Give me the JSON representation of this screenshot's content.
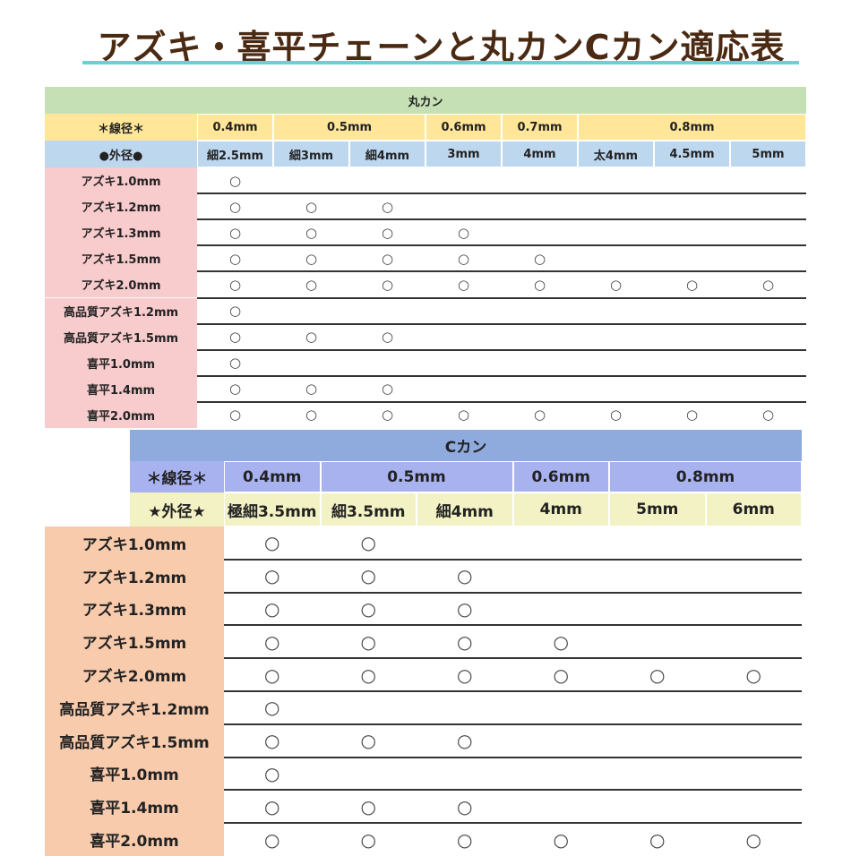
{
  "title": "アズキ・喜平チェーンと丸カンCカン適応表",
  "colors": {
    "title": "#4a2a12",
    "underline": "#63d4d6"
  },
  "marukan": {
    "title": "丸カン",
    "wire_label": "＊線径＊",
    "wire": [
      {
        "label": "0.4mm",
        "span": 1
      },
      {
        "label": "0.5mm",
        "span": 2
      },
      {
        "label": "0.6mm",
        "span": 1
      },
      {
        "label": "0.7mm",
        "span": 1
      },
      {
        "label": "0.8mm",
        "span": 3
      }
    ],
    "outer_label": "●外径●",
    "outer": [
      "細2.5mm",
      "細3mm",
      "細4mm",
      "3mm",
      "4mm",
      "太4mm",
      "4.5mm",
      "5mm"
    ],
    "rows": [
      {
        "chain": "アズキ1.0mm",
        "cells": [
          "○",
          "",
          "",
          "",
          "",
          "",
          "",
          ""
        ]
      },
      {
        "chain": "アズキ1.2mm",
        "cells": [
          "○",
          "○",
          "○",
          "",
          "",
          "",
          "",
          ""
        ]
      },
      {
        "chain": "アズキ1.3mm",
        "cells": [
          "○",
          "○",
          "○",
          "○",
          "",
          "",
          "",
          ""
        ]
      },
      {
        "chain": "アズキ1.5mm",
        "cells": [
          "○",
          "○",
          "○",
          "○",
          "○",
          "",
          "",
          ""
        ]
      },
      {
        "chain": "アズキ2.0mm",
        "cells": [
          "○",
          "○",
          "○",
          "○",
          "○",
          "○",
          "○",
          "○"
        ]
      },
      {
        "chain": "高品質アズキ1.2mm",
        "cells": [
          "○",
          "",
          "",
          "",
          "",
          "",
          "",
          ""
        ]
      },
      {
        "chain": "高品質アズキ1.5mm",
        "cells": [
          "○",
          "○",
          "○",
          "",
          "",
          "",
          "",
          ""
        ]
      },
      {
        "chain": "喜平1.0mm",
        "cells": [
          "○",
          "",
          "",
          "",
          "",
          "",
          "",
          ""
        ]
      },
      {
        "chain": "喜平1.4mm",
        "cells": [
          "○",
          "○",
          "○",
          "",
          "",
          "",
          "",
          ""
        ]
      },
      {
        "chain": "喜平2.0mm",
        "cells": [
          "○",
          "○",
          "○",
          "○",
          "○",
          "○",
          "○",
          "○"
        ]
      }
    ],
    "colors": {
      "title": "#c5e0b4",
      "wire": "#ffe699",
      "outer": "#bdd7ee",
      "chain": "#f8cbcd"
    }
  },
  "ckan": {
    "title": "Cカン",
    "wire_label": "＊線径＊",
    "wire": [
      {
        "label": "0.4mm",
        "span": 1
      },
      {
        "label": "0.5mm",
        "span": 2
      },
      {
        "label": "0.6mm",
        "span": 1
      },
      {
        "label": "0.8mm",
        "span": 2
      }
    ],
    "outer_label": "★外径★",
    "outer": [
      "極細3.5mm",
      "細3.5mm",
      "細4mm",
      "4mm",
      "5mm",
      "6mm"
    ],
    "rows": [
      {
        "chain": "アズキ1.0mm",
        "cells": [
          "○",
          "○",
          "",
          "",
          "",
          ""
        ]
      },
      {
        "chain": "アズキ1.2mm",
        "cells": [
          "○",
          "○",
          "○",
          "",
          "",
          ""
        ]
      },
      {
        "chain": "アズキ1.3mm",
        "cells": [
          "○",
          "○",
          "○",
          "",
          "",
          ""
        ]
      },
      {
        "chain": "アズキ1.5mm",
        "cells": [
          "○",
          "○",
          "○",
          "○",
          "",
          ""
        ]
      },
      {
        "chain": "アズキ2.0mm",
        "cells": [
          "○",
          "○",
          "○",
          "○",
          "○",
          "○"
        ]
      },
      {
        "chain": "高品質アズキ1.2mm",
        "cells": [
          "○",
          "",
          "",
          "",
          "",
          ""
        ]
      },
      {
        "chain": "高品質アズキ1.5mm",
        "cells": [
          "○",
          "○",
          "○",
          "",
          "",
          ""
        ]
      },
      {
        "chain": "喜平1.0mm",
        "cells": [
          "○",
          "",
          "",
          "",
          "",
          ""
        ]
      },
      {
        "chain": "喜平1.4mm",
        "cells": [
          "○",
          "○",
          "○",
          "",
          "",
          ""
        ]
      },
      {
        "chain": "喜平2.0mm",
        "cells": [
          "○",
          "○",
          "○",
          "○",
          "○",
          "○"
        ]
      }
    ],
    "colors": {
      "title": "#8faadc",
      "wire": "#a8b2ef",
      "outer": "#f2f2c4",
      "chain": "#f8cbad"
    }
  }
}
